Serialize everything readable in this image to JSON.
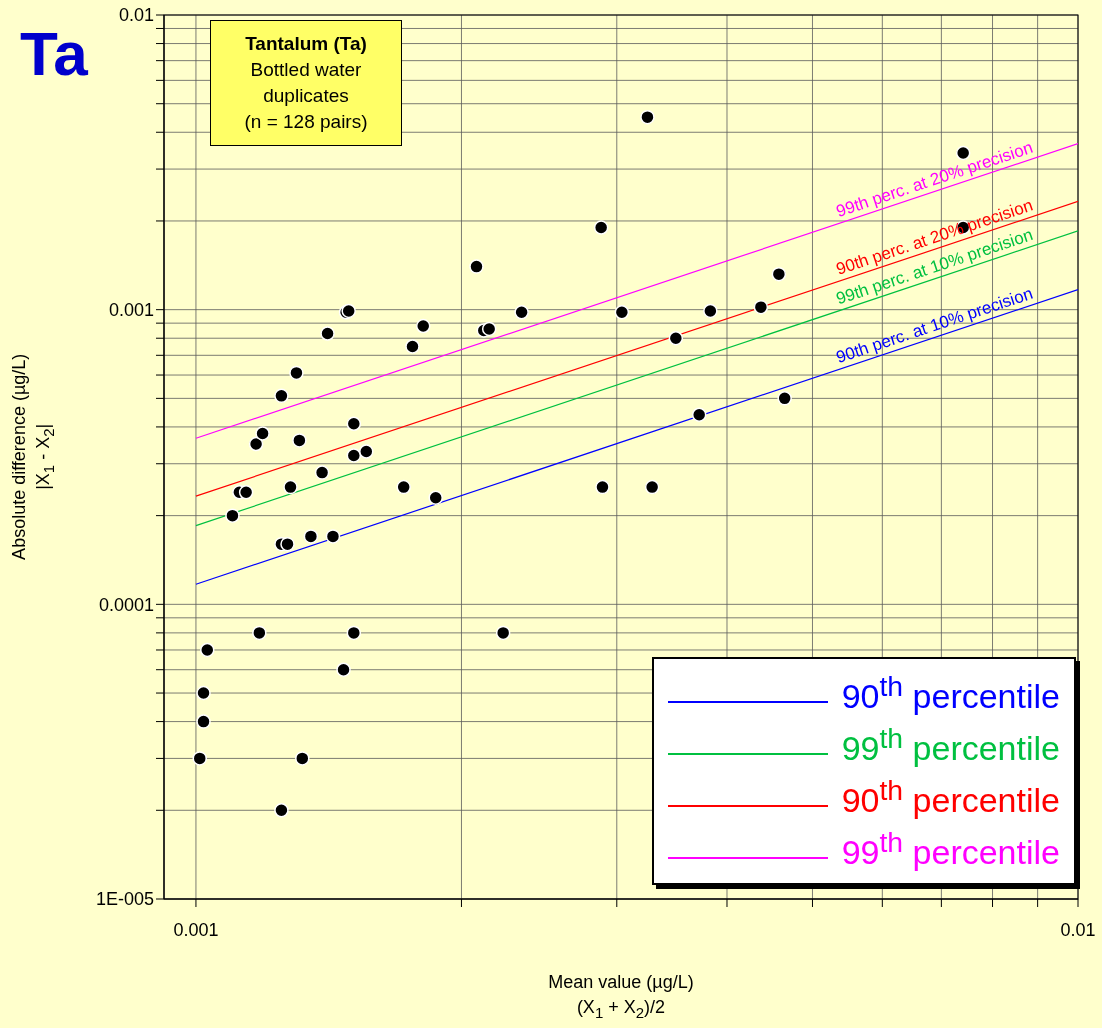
{
  "chart_data": {
    "type": "scatter",
    "title": "Ta",
    "xlabel": "Mean value (µg/L)\n(X$_{1}$ + X$_{2}$)/2",
    "ylabel": "Absolute difference (µg/L)\n|X$_{1}$ - X$_{2}$|",
    "log": "xy",
    "grid": true,
    "legend": "bottom right",
    "xlim": [
      0.00092,
      0.01
    ],
    "ylim": [
      1e-05,
      0.01
    ],
    "xticks": [
      0.001,
      {
        "value": 0.002,
        "label": null
      },
      {
        "value": 0.003,
        "label": null
      },
      {
        "value": 0.004,
        "label": null
      },
      {
        "value": 0.005,
        "label": null
      },
      {
        "value": 0.006,
        "label": null
      },
      {
        "value": 0.007,
        "label": null
      },
      {
        "value": 0.008,
        "label": null
      },
      {
        "value": 0.009,
        "label": null
      },
      0.01
    ],
    "yticks": [
      {
        "value": 1e-05,
        "label": "1E-005"
      },
      {
        "value": 2e-05,
        "label": null
      },
      {
        "value": 3e-05,
        "label": null
      },
      {
        "value": 4e-05,
        "label": null
      },
      {
        "value": 5e-05,
        "label": null
      },
      {
        "value": 6e-05,
        "label": null
      },
      {
        "value": 7e-05,
        "label": null
      },
      {
        "value": 8e-05,
        "label": null
      },
      {
        "value": 9e-05,
        "label": null
      },
      0.0001,
      {
        "value": 0.0002,
        "label": null
      },
      {
        "value": 0.0003,
        "label": null
      },
      {
        "value": 0.0004,
        "label": null
      },
      {
        "value": 0.0005,
        "label": null
      },
      {
        "value": 0.0006,
        "label": null
      },
      {
        "value": 0.0007,
        "label": null
      },
      {
        "value": 0.0008,
        "label": null
      },
      {
        "value": 0.0009,
        "label": null
      },
      0.001,
      {
        "value": 0.002,
        "label": null
      },
      {
        "value": 0.003,
        "label": null
      },
      {
        "value": 0.004,
        "label": null
      },
      {
        "value": 0.005,
        "label": null
      },
      {
        "value": 0.006,
        "label": null
      },
      {
        "value": 0.007,
        "label": null
      },
      {
        "value": 0.008,
        "label": null
      },
      {
        "value": 0.009,
        "label": null
      },
      0.01
    ],
    "series": [
      {
        "type": "scatter",
        "marker": "circle",
        "color": "#000000",
        "x": [
          0.00101,
          0.00102,
          0.00102,
          0.00103,
          0.0011,
          0.00112,
          0.00114,
          0.00117,
          0.00118,
          0.00119,
          0.00125,
          0.00125,
          0.00125,
          0.00127,
          0.00128,
          0.0013,
          0.00131,
          0.00132,
          0.00135,
          0.00139,
          0.00141,
          0.00143,
          0.00147,
          0.00148,
          0.00149,
          0.00151,
          0.00151,
          0.00151,
          0.00156,
          0.00172,
          0.00176,
          0.00181,
          0.00187,
          0.00208,
          0.00212,
          0.00215,
          0.00223,
          0.00234,
          0.00288,
          0.00289,
          0.00304,
          0.00325,
          0.00329,
          0.0035,
          0.00372,
          0.00383,
          0.00437,
          0.00458,
          0.00465,
          0.00741,
          0.00741
        ],
        "values": [
          3e-05,
          4e-05,
          5e-05,
          7e-05,
          0.0002,
          0.00024,
          0.00024,
          0.00035,
          8e-05,
          0.00038,
          2e-05,
          0.00016,
          0.00051,
          0.00016,
          0.00025,
          0.00061,
          0.00036,
          3e-05,
          0.00017,
          0.00028,
          0.00083,
          0.00017,
          6e-05,
          0.00098,
          0.00099,
          0.00032,
          0.00041,
          8e-05,
          0.00033,
          0.00025,
          0.00075,
          0.00088,
          0.00023,
          0.0014,
          0.00085,
          0.00086,
          8e-05,
          0.00098,
          0.0019,
          0.00025,
          0.00098,
          0.0045,
          0.00025,
          0.0008,
          0.00044,
          0.00099,
          0.00102,
          0.00132,
          0.0005,
          0.0034,
          0.0019
        ]
      },
      {
        "type": "line",
        "name": "90$^{th}$ percentile",
        "color": "#0000ff",
        "x": [
          0.001,
          0.01
        ],
        "values": [
          0.000117,
          0.00117
        ]
      },
      {
        "type": "line",
        "name": "99$^{th}$ percentile",
        "color": "#00c040",
        "x": [
          0.001,
          0.01
        ],
        "values": [
          0.000185,
          0.00185
        ]
      },
      {
        "type": "line",
        "name": "90$^{th}$ percentile",
        "color": "#ff0000",
        "x": [
          0.001,
          0.01
        ],
        "values": [
          0.000233,
          0.00233
        ]
      },
      {
        "type": "line",
        "name": "99$^{th}$ percentile",
        "color": "#ff00ff",
        "x": [
          0.001,
          0.01
        ],
        "values": [
          0.000366,
          0.00366
        ]
      }
    ],
    "annotations": [
      "Tantalum (Ta)",
      "Bottled water",
      "duplicates",
      "(n = 128 pairs)",
      "90th perc. at 10% precision",
      "99th perc. at 10% precision",
      "90th perc. at 20% precision",
      "99th perc. at 20% precision"
    ]
  }
}
